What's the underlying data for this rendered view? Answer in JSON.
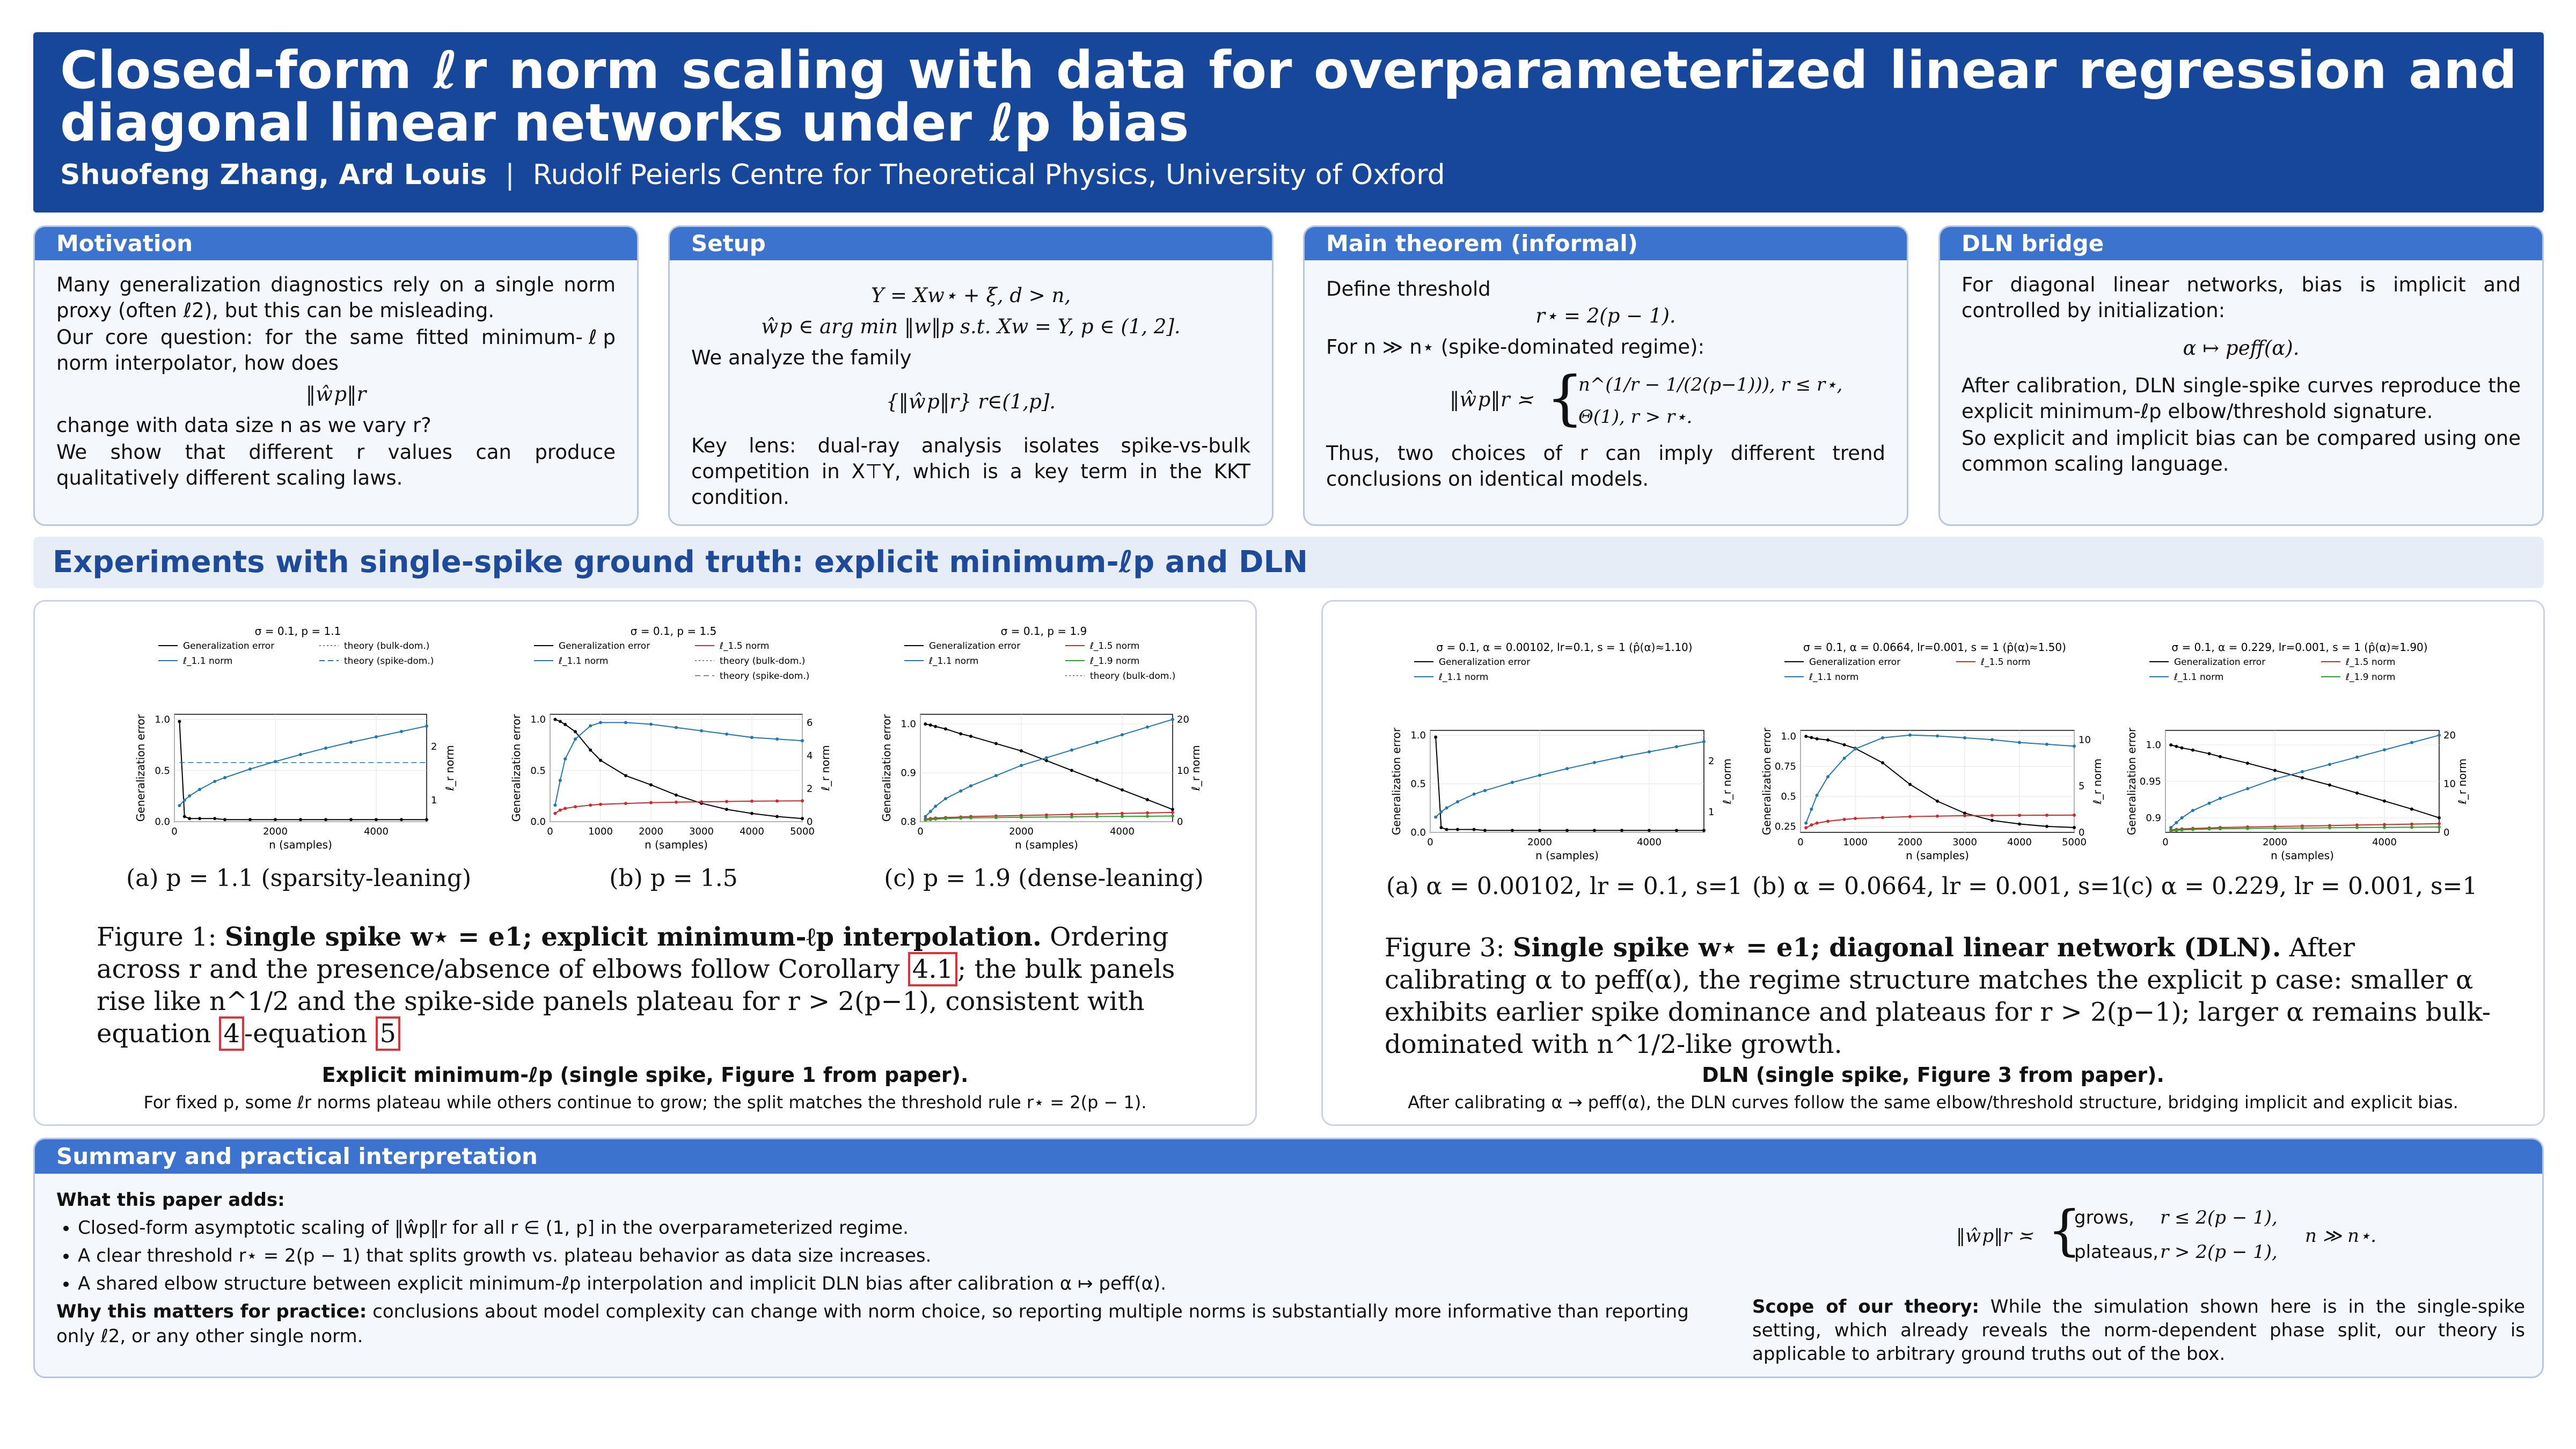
{
  "header": {
    "title": "Closed-form ℓr norm scaling with data for overparameterized linear regression and diagonal linear networks under ℓp bias",
    "authors": "Shuofeng Zhang, Ard Louis",
    "separator": "|",
    "affiliation": "Rudolf Peierls Centre for Theoretical Physics, University of Oxford"
  },
  "motivation": {
    "heading": "Motivation",
    "p1": "Many generalization diagnostics rely on a single norm proxy (often ℓ2), but this can be misleading.",
    "p2": "Our core question: for the same fitted minimum-ℓp norm interpolator, how does",
    "eq": "‖ŵp‖r",
    "p3": "change with data size n as we vary r?",
    "p4": "We show that different r values can produce qualitatively different scaling laws."
  },
  "setup": {
    "heading": "Setup",
    "eq1": "Y = Xw⋆ + ξ,    d > n,",
    "eq2": "ŵp ∈ arg min ‖w‖p s.t. Xw = Y,    p ∈ (1, 2].",
    "p1": "We analyze the family",
    "eq3": "{‖ŵp‖r} r∈(1,p].",
    "p2": "Key lens: dual-ray analysis isolates spike-vs-bulk competition in X⊤Y, which is a key term in the KKT condition."
  },
  "theorem": {
    "heading": "Main theorem (informal)",
    "p1": "Define threshold",
    "eq1": "r⋆ = 2(p − 1).",
    "p2": "For n ≫ n⋆ (spike-dominated regime):",
    "lhs": "‖ŵp‖r ≍",
    "case1": "n^(1/r − 1/(2(p−1))),    r ≤ r⋆,",
    "case2": "Θ(1),            r > r⋆.",
    "p3": "Thus, two choices of r can imply different trend conclusions on identical models."
  },
  "dln": {
    "heading": "DLN bridge",
    "p1": "For diagonal linear networks, bias is implicit and controlled by initialization:",
    "eq": "α ↦ peff(α).",
    "p2": "After calibration, DLN single-spike curves reproduce the explicit minimum-ℓp elbow/threshold signature.",
    "p3": "So explicit and implicit bias can be compared using one common scaling language."
  },
  "banner": "Experiments with single-spike ground truth: explicit minimum-ℓp and DLN",
  "fig1": {
    "subcaps": [
      "(a) p = 1.1 (sparsity-leaning)",
      "(b) p = 1.5",
      "(c) p = 1.9 (dense-leaning)"
    ],
    "caption_lead": "Figure 1: ",
    "caption_bold": "Single spike w⋆ = e1; explicit minimum-ℓp interpolation.",
    "caption_rest1": " Ordering across r and the presence/absence of elbows follow Corollary ",
    "ref1": "4.1",
    "caption_rest2": "; the bulk panels rise like n^1/2 and the spike-side panels plateau for r > 2(p−1), consistent with equation ",
    "ref2": "4",
    "caption_rest3": "-equation ",
    "ref3": "5",
    "label": "Explicit minimum-ℓp (single spike, Figure 1 from paper).",
    "sub": "For fixed p, some ℓr norms plateau while others continue to grow; the split matches the threshold rule r⋆ = 2(p − 1)."
  },
  "fig3": {
    "subcaps": [
      "(a) α = 0.00102, lr = 0.1, s=1",
      "(b) α = 0.0664, lr = 0.001, s=1",
      "(c) α = 0.229, lr = 0.001, s=1"
    ],
    "caption_lead": "Figure 3: ",
    "caption_bold": "Single spike w⋆ = e1; diagonal linear network (DLN).",
    "caption_rest": " After calibrating α to peff(α), the regime structure matches the explicit p case: smaller α exhibits earlier spike dominance and plateaus for r > 2(p−1); larger α remains bulk-dominated with n^1/2-like growth.",
    "label": "DLN (single spike, Figure 3 from paper).",
    "sub": "After calibrating α → peff(α), the DLN curves follow the same elbow/threshold structure, bridging implicit and explicit bias."
  },
  "summary": {
    "heading": "Summary and practical interpretation",
    "adds_title": "What this paper adds:",
    "bullets": [
      "Closed-form asymptotic scaling of ‖ŵp‖r for all r ∈ (1, p] in the overparameterized regime.",
      "A clear threshold r⋆ = 2(p − 1) that splits growth vs. plateau behavior as data size increases.",
      "A shared elbow structure between explicit minimum-ℓp interpolation and implicit DLN bias after calibration α ↦ peff(α)."
    ],
    "why_title": "Why this matters for practice:",
    "why_text": " conclusions about model complexity can change with norm choice, so reporting multiple norms is substantially more informative than reporting only ℓ2, or any other single norm.",
    "eq_lhs": "‖ŵp‖r ≍",
    "eq_c1a": "grows,",
    "eq_c1b": "r ≤ 2(p − 1),",
    "eq_c2a": "plateaus,",
    "eq_c2b": "r > 2(p − 1),",
    "eq_cond": "n ≫ n⋆.",
    "scope_title": "Scope of our theory:",
    "scope_text": " While the simulation shown here is in the single-spike setting, which already reveals the norm-dependent phase split, our theory is applicable to arbitrary ground truths out of the box."
  },
  "chart_data": [
    {
      "type": "line",
      "title": "σ = 0.1, p = 1.1",
      "xlabel": "n (samples)",
      "ylabel": "Generalization error",
      "y2label": "ℓ_r norm",
      "xlim": [
        0,
        5000
      ],
      "ylim": [
        0,
        1.05
      ],
      "y2lim": [
        0.6,
        2.6
      ],
      "xticks": [
        0,
        2000,
        4000
      ],
      "yticks": [
        0.0,
        0.5,
        1.0
      ],
      "y2ticks": [
        1,
        2
      ],
      "legend": [
        "Generalization error",
        "ℓ_1.1 norm",
        "theory (bulk-dom.)",
        "theory (spike-dom.)"
      ],
      "x": [
        100,
        200,
        300,
        500,
        800,
        1000,
        1500,
        2000,
        2500,
        3000,
        3500,
        4000,
        4500,
        5000
      ],
      "series": [
        {
          "name": "Generalization error",
          "axis": "left",
          "color": "#000000",
          "values": [
            0.98,
            0.05,
            0.03,
            0.03,
            0.03,
            0.02,
            0.02,
            0.02,
            0.02,
            0.02,
            0.02,
            0.02,
            0.02,
            0.02
          ]
        },
        {
          "name": "ℓ_1.1 norm",
          "axis": "right",
          "color": "#1f77b4",
          "values": [
            0.9,
            1.0,
            1.08,
            1.2,
            1.35,
            1.42,
            1.58,
            1.72,
            1.85,
            1.97,
            2.08,
            2.18,
            2.28,
            2.38
          ]
        },
        {
          "name": "theory (spike-dom.)",
          "axis": "right",
          "color": "#1f77b4",
          "dash": true,
          "values": [
            1.7,
            1.7,
            1.7,
            1.7,
            1.7,
            1.7,
            1.7,
            1.7,
            1.7,
            1.7,
            1.7,
            1.7,
            1.7,
            1.7
          ]
        }
      ]
    },
    {
      "type": "line",
      "title": "σ = 0.1, p = 1.5",
      "xlabel": "n (samples)",
      "ylabel": "Generalization error",
      "y2label": "ℓ_r norm",
      "xlim": [
        0,
        5000
      ],
      "ylim": [
        0,
        1.05
      ],
      "y2lim": [
        0,
        6.5
      ],
      "xticks": [
        0,
        1000,
        2000,
        3000,
        4000,
        5000
      ],
      "yticks": [
        0.0,
        0.5,
        1.0
      ],
      "y2ticks": [
        0,
        2,
        4,
        6
      ],
      "legend": [
        "Generalization error",
        "ℓ_1.1 norm",
        "ℓ_1.5 norm",
        "theory (bulk-dom.)",
        "theory (spike-dom.)"
      ],
      "x": [
        100,
        200,
        300,
        500,
        800,
        1000,
        1500,
        2000,
        2500,
        3000,
        3500,
        4000,
        4500,
        5000
      ],
      "series": [
        {
          "name": "Generalization error",
          "axis": "left",
          "color": "#000000",
          "values": [
            1.0,
            0.98,
            0.95,
            0.88,
            0.7,
            0.6,
            0.45,
            0.36,
            0.26,
            0.18,
            0.12,
            0.08,
            0.05,
            0.03
          ]
        },
        {
          "name": "ℓ_1.1 norm",
          "axis": "right",
          "color": "#1f77b4",
          "values": [
            1.0,
            2.5,
            3.8,
            5.0,
            5.8,
            6.0,
            6.0,
            5.9,
            5.7,
            5.5,
            5.3,
            5.1,
            5.0,
            4.9
          ]
        },
        {
          "name": "ℓ_1.5 norm",
          "axis": "right",
          "color": "#d62728",
          "values": [
            0.5,
            0.7,
            0.8,
            0.9,
            1.0,
            1.05,
            1.1,
            1.15,
            1.18,
            1.2,
            1.22,
            1.24,
            1.25,
            1.26
          ]
        }
      ]
    },
    {
      "type": "line",
      "title": "σ = 0.1, p = 1.9",
      "xlabel": "n (samples)",
      "ylabel": "Generalization error",
      "y2label": "ℓ_r norm",
      "xlim": [
        0,
        5000
      ],
      "ylim": [
        0.8,
        1.02
      ],
      "y2lim": [
        0,
        21
      ],
      "xticks": [
        0,
        2000,
        4000
      ],
      "yticks": [
        0.8,
        0.9,
        1.0
      ],
      "y2ticks": [
        0,
        10,
        20
      ],
      "legend": [
        "Generalization error",
        "ℓ_1.1 norm",
        "ℓ_1.5 norm",
        "ℓ_1.9 norm",
        "theory (bulk-dom.)"
      ],
      "x": [
        100,
        200,
        300,
        500,
        800,
        1000,
        1500,
        2000,
        2500,
        3000,
        3500,
        4000,
        4500,
        5000
      ],
      "series": [
        {
          "name": "Generalization error",
          "axis": "left",
          "color": "#000000",
          "values": [
            1.0,
            0.998,
            0.995,
            0.99,
            0.98,
            0.975,
            0.96,
            0.945,
            0.925,
            0.905,
            0.885,
            0.865,
            0.845,
            0.825
          ]
        },
        {
          "name": "ℓ_1.1 norm",
          "axis": "right",
          "color": "#1f77b4",
          "values": [
            1,
            2,
            3,
            4.5,
            6,
            7,
            9,
            11,
            12.5,
            14,
            15.5,
            17,
            18.5,
            20
          ]
        },
        {
          "name": "ℓ_1.5 norm",
          "axis": "right",
          "color": "#d62728",
          "values": [
            0.5,
            0.6,
            0.7,
            0.8,
            0.9,
            1.0,
            1.1,
            1.2,
            1.3,
            1.4,
            1.5,
            1.6,
            1.7,
            1.8
          ]
        },
        {
          "name": "ℓ_1.9 norm",
          "axis": "right",
          "color": "#2ca02c",
          "values": [
            0.3,
            0.4,
            0.5,
            0.6,
            0.7,
            0.75,
            0.8,
            0.85,
            0.9,
            0.95,
            1.0,
            1.02,
            1.05,
            1.1
          ]
        }
      ]
    },
    {
      "type": "line",
      "title": "σ = 0.1, α = 0.00102, lr=0.1, s = 1  (p̂(α)≈1.10)",
      "xlabel": "n (samples)",
      "ylabel": "Generalization error",
      "y2label": "ℓ_r norm",
      "xlim": [
        0,
        5000
      ],
      "ylim": [
        0,
        1.05
      ],
      "y2lim": [
        0.6,
        2.6
      ],
      "xticks": [
        0,
        2000,
        4000
      ],
      "yticks": [
        0.0,
        0.5,
        1.0
      ],
      "y2ticks": [
        1,
        2
      ],
      "legend": [
        "Generalization error",
        "ℓ_1.1 norm"
      ],
      "x": [
        100,
        200,
        300,
        500,
        800,
        1000,
        1500,
        2000,
        2500,
        3000,
        3500,
        4000,
        4500,
        5000
      ],
      "series": [
        {
          "name": "Generalization error",
          "axis": "left",
          "color": "#000000",
          "values": [
            0.98,
            0.05,
            0.03,
            0.03,
            0.03,
            0.02,
            0.02,
            0.02,
            0.02,
            0.02,
            0.02,
            0.02,
            0.02,
            0.02
          ]
        },
        {
          "name": "ℓ_1.1 norm",
          "axis": "right",
          "color": "#1f77b4",
          "values": [
            0.9,
            1.0,
            1.08,
            1.2,
            1.35,
            1.42,
            1.58,
            1.72,
            1.85,
            1.97,
            2.08,
            2.18,
            2.28,
            2.38
          ]
        }
      ]
    },
    {
      "type": "line",
      "title": "σ = 0.1, α = 0.0664, lr=0.001, s = 1  (p̂(α)≈1.50)",
      "xlabel": "n (samples)",
      "ylabel": "Generalization error",
      "y2label": "ℓ_r norm",
      "xlim": [
        0,
        5000
      ],
      "ylim": [
        0.2,
        1.05
      ],
      "y2lim": [
        0,
        11
      ],
      "xticks": [
        0,
        1000,
        2000,
        3000,
        4000,
        5000
      ],
      "yticks": [
        0.25,
        0.5,
        0.75,
        1.0
      ],
      "y2ticks": [
        0,
        5,
        10
      ],
      "legend": [
        "Generalization error",
        "ℓ_1.1 norm",
        "ℓ_1.5 norm"
      ],
      "x": [
        100,
        200,
        300,
        500,
        800,
        1000,
        1500,
        2000,
        2500,
        3000,
        3500,
        4000,
        4500,
        5000
      ],
      "series": [
        {
          "name": "Generalization error",
          "axis": "left",
          "color": "#000000",
          "values": [
            1.0,
            0.99,
            0.98,
            0.97,
            0.93,
            0.9,
            0.78,
            0.6,
            0.46,
            0.36,
            0.3,
            0.27,
            0.25,
            0.24
          ]
        },
        {
          "name": "ℓ_1.1 norm",
          "axis": "right",
          "color": "#1f77b4",
          "values": [
            1,
            2.5,
            4,
            6,
            8,
            9,
            10.2,
            10.5,
            10.4,
            10.2,
            10,
            9.7,
            9.5,
            9.3
          ]
        },
        {
          "name": "ℓ_1.5 norm",
          "axis": "right",
          "color": "#d62728",
          "values": [
            0.5,
            0.8,
            1.0,
            1.2,
            1.4,
            1.5,
            1.6,
            1.7,
            1.75,
            1.8,
            1.82,
            1.84,
            1.85,
            1.86
          ]
        }
      ]
    },
    {
      "type": "line",
      "title": "σ = 0.1, α = 0.229, lr=0.001, s = 1  (p̂(α)≈1.90)",
      "xlabel": "n (samples)",
      "ylabel": "Generalization error",
      "y2label": "ℓ_r norm",
      "xlim": [
        0,
        5000
      ],
      "ylim": [
        0.88,
        1.02
      ],
      "y2lim": [
        0,
        21
      ],
      "xticks": [
        0,
        2000,
        4000
      ],
      "yticks": [
        0.9,
        0.95,
        1.0
      ],
      "y2ticks": [
        0,
        10,
        20
      ],
      "legend": [
        "Generalization error",
        "ℓ_1.1 norm",
        "ℓ_1.5 norm",
        "ℓ_1.9 norm"
      ],
      "x": [
        100,
        200,
        300,
        500,
        800,
        1000,
        1500,
        2000,
        2500,
        3000,
        3500,
        4000,
        4500,
        5000
      ],
      "series": [
        {
          "name": "Generalization error",
          "axis": "left",
          "color": "#000000",
          "values": [
            1.0,
            0.998,
            0.996,
            0.993,
            0.988,
            0.984,
            0.975,
            0.965,
            0.955,
            0.945,
            0.934,
            0.923,
            0.912,
            0.9
          ]
        },
        {
          "name": "ℓ_1.1 norm",
          "axis": "right",
          "color": "#1f77b4",
          "values": [
            1,
            2,
            3,
            4.5,
            6,
            7,
            9,
            11,
            12.5,
            14,
            15.5,
            17,
            18.5,
            20
          ]
        },
        {
          "name": "ℓ_1.5 norm",
          "axis": "right",
          "color": "#d62728",
          "values": [
            0.5,
            0.6,
            0.7,
            0.8,
            0.9,
            1.0,
            1.1,
            1.2,
            1.3,
            1.4,
            1.5,
            1.6,
            1.7,
            1.8
          ]
        },
        {
          "name": "ℓ_1.9 norm",
          "axis": "right",
          "color": "#2ca02c",
          "values": [
            0.3,
            0.4,
            0.5,
            0.6,
            0.7,
            0.75,
            0.8,
            0.85,
            0.9,
            0.95,
            1.0,
            1.02,
            1.05,
            1.1
          ]
        }
      ]
    }
  ]
}
